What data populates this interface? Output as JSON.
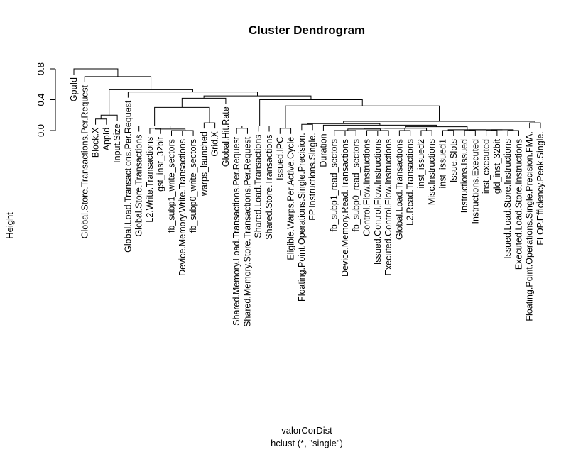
{
  "chart_data": {
    "type": "dendrogram",
    "title": "Cluster Dendrogram",
    "ylabel": "Height",
    "xlabel": "valorCorDist",
    "sub": "hclust (*, \"single\")",
    "ylim": [
      0,
      0.8
    ],
    "yticks": [
      0.0,
      0.4,
      0.8
    ],
    "ytick_labels": [
      "0.0",
      "0.4",
      "0.8"
    ],
    "leaves": [
      "GpuId",
      "Global.Store.Transactions.Per.Request",
      "Block.X",
      "AppId",
      "Input.Size",
      "Global.Load.Transactions.Per.Request",
      "Global.Store.Transactions",
      "L2.Write.Transactions",
      "gst_inst_32bit",
      "fb_subp1_write_sectors",
      "Device.Memory.Write.Transactions",
      "fb_subp0_write_sectors",
      "warps_launched",
      "Grid.X",
      "Global.Hit.Rate",
      "Shared.Memory.Load.Transactions.Per.Request",
      "Shared.Memory.Store.Transactions.Per.Request",
      "Shared.Load.Transactions",
      "Shared.Store.Transactions",
      "Issued.IPC",
      "Eligible.Warps.Per.Active.Cycle",
      "Floating.Point.Operations.Single.Precision.",
      "FP.Instructions.Single.",
      "Duration",
      "fb_subp1_read_sectors",
      "Device.Memory.Read.Transactions",
      "fb_subp0_read_sectors",
      "Control.Flow.Instructions",
      "Issued.Control.Flow.Instructions",
      "Executed.Control.Flow.Instructions",
      "Global.Load.Transactions",
      "L2.Read.Transactions",
      "inst_issued2",
      "Misc.Instructions",
      "inst_issued1",
      "Issue.Slots",
      "Instructions.Issued",
      "Instructions.Executed",
      "inst_executed",
      "gld_inst_32bit",
      "Issued.Load.Store.Instructions",
      "Executed.Load.Store.Instructions",
      "Floating.Point.Operations.Single.Precision.FMA.",
      "FLOP.Efficiency.Peak.Single."
    ],
    "merges": [
      [
        -3,
        -4,
        0.15
      ],
      [
        -5,
        1,
        0.2
      ],
      [
        -8,
        -9,
        0.03
      ],
      [
        -10,
        -11,
        0.0
      ],
      [
        -12,
        4,
        0.0
      ],
      [
        3,
        5,
        0.02
      ],
      [
        -7,
        6,
        0.06
      ],
      [
        -13,
        -14,
        0.1
      ],
      [
        7,
        8,
        0.3
      ],
      [
        -15,
        9,
        0.42
      ],
      [
        -16,
        -17,
        0.03
      ],
      [
        -18,
        11,
        0.06
      ],
      [
        -19,
        12,
        0.06
      ],
      [
        -20,
        -21,
        0.03
      ],
      [
        -22,
        -23,
        0.08
      ],
      [
        -25,
        -26,
        0.0
      ],
      [
        -27,
        16,
        0.0
      ],
      [
        -28,
        -29,
        0.0
      ],
      [
        -30,
        18,
        0.0
      ],
      [
        17,
        19,
        0.02
      ],
      [
        -31,
        -32,
        0.0
      ],
      [
        20,
        21,
        0.03
      ],
      [
        -33,
        -34,
        0.0
      ],
      [
        22,
        23,
        0.03
      ],
      [
        -35,
        -36,
        0.0
      ],
      [
        -37,
        -38,
        0.0
      ],
      [
        -39,
        -40,
        0.0
      ],
      [
        -41,
        -42,
        0.0
      ],
      [
        27,
        28,
        0.01
      ],
      [
        26,
        29,
        0.01
      ],
      [
        25,
        30,
        0.01
      ],
      [
        24,
        31,
        0.05
      ],
      [
        -24,
        32,
        0.07
      ],
      [
        15,
        33,
        0.09
      ],
      [
        -43,
        -44,
        0.1
      ],
      [
        34,
        35,
        0.12
      ],
      [
        14,
        36,
        0.32
      ],
      [
        13,
        37,
        0.4
      ],
      [
        10,
        38,
        0.45
      ],
      [
        -6,
        39,
        0.5
      ],
      [
        2,
        40,
        0.53
      ],
      [
        -2,
        41,
        0.7
      ],
      [
        -1,
        42,
        0.8
      ]
    ]
  }
}
